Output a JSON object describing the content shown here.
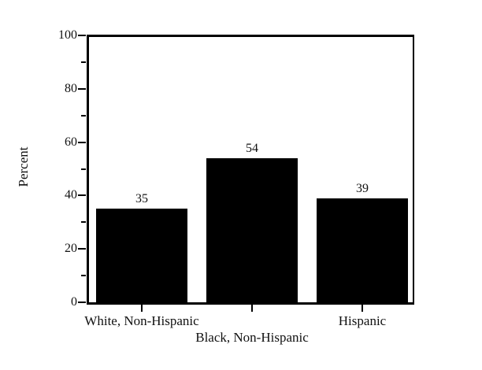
{
  "chart_data": {
    "type": "bar",
    "title": "",
    "categories": [
      "White, Non-Hispanic",
      "Black, Non-Hispanic",
      "Hispanic"
    ],
    "values": [
      35,
      54,
      39
    ],
    "value_labels": [
      "35",
      "54",
      "39"
    ],
    "xlabel": "",
    "ylabel": "Percent",
    "ylim": [
      0,
      100
    ],
    "yticks_major": [
      0,
      20,
      40,
      60,
      80,
      100
    ],
    "yticks_minor": [
      10,
      30,
      50,
      70,
      90
    ],
    "grid": false,
    "legend": "none",
    "x_tick_label_stagger": true,
    "bar_color": "#000000",
    "axis_color": "#000000",
    "text_color": "#111111",
    "background_color": "#ffffff"
  }
}
